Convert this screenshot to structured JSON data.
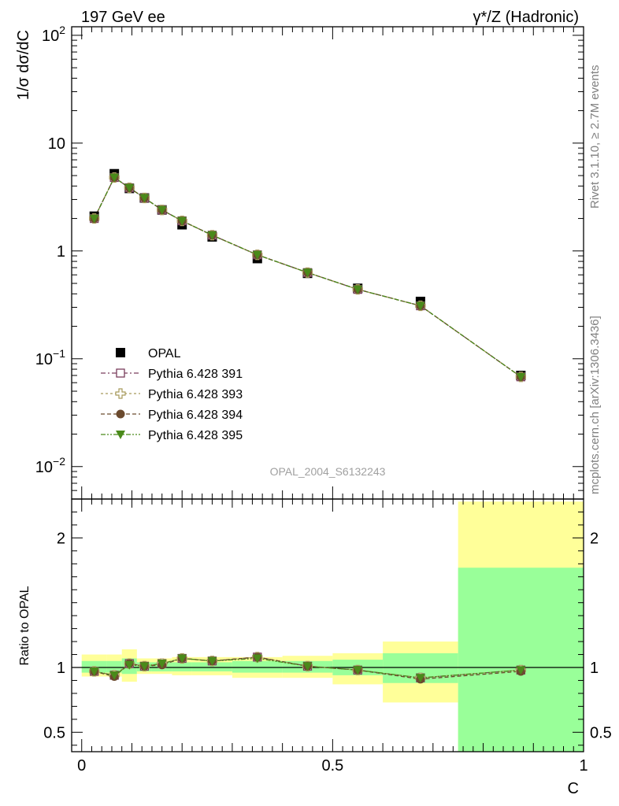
{
  "header": {
    "left": "197 GeV ee",
    "right": "γ*/Z (Hadronic)"
  },
  "side_labels": {
    "rivet": "Rivet 3.1.10, ≥ 2.7M events",
    "mcplots": "mcplots.cern.ch [arXiv:1306.3436]"
  },
  "analysis_id": "OPAL_2004_S6132243",
  "colors": {
    "data": "#000000",
    "p391": "#7a3d5c",
    "p393": "#a89a5c",
    "p394": "#6b4a2e",
    "p395": "#4a8a1a",
    "band_inner": "#99ff99",
    "band_outer": "#ffff99"
  },
  "chart_data": [
    {
      "type": "scatter",
      "ylabel": "1/σ dσ/dC",
      "yscale": "log",
      "ylim": [
        0.005,
        120
      ],
      "xlim": [
        -0.02,
        1.0
      ],
      "yticks": [
        {
          "value": 0.01,
          "base": "10",
          "exp": "−2"
        },
        {
          "value": 0.1,
          "base": "10",
          "exp": "−1"
        },
        {
          "value": 1,
          "base": "1",
          "exp": ""
        },
        {
          "value": 10,
          "base": "10",
          "exp": ""
        },
        {
          "value": 100,
          "base": "10",
          "exp": "2"
        }
      ],
      "legend_position": "lower-left",
      "legend": [
        {
          "label": "OPAL",
          "key": "data"
        },
        {
          "label": "Pythia 6.428 391",
          "key": "p391"
        },
        {
          "label": "Pythia 6.428 393",
          "key": "p393"
        },
        {
          "label": "Pythia 6.428 394",
          "key": "p394"
        },
        {
          "label": "Pythia 6.428 395",
          "key": "p395"
        }
      ],
      "x": [
        0.025,
        0.065,
        0.095,
        0.125,
        0.16,
        0.2,
        0.26,
        0.35,
        0.45,
        0.55,
        0.675,
        0.875
      ],
      "series": [
        {
          "name": "OPAL",
          "key": "data",
          "values": [
            2.1,
            5.2,
            3.8,
            3.1,
            2.4,
            1.75,
            1.35,
            0.85,
            0.62,
            0.45,
            0.34,
            0.07
          ]
        },
        {
          "name": "Pythia 6.428 391",
          "key": "p391",
          "values": [
            2.0,
            4.8,
            3.85,
            3.1,
            2.4,
            1.9,
            1.4,
            0.92,
            0.63,
            0.44,
            0.31,
            0.068
          ]
        },
        {
          "name": "Pythia 6.428 393",
          "key": "p393",
          "values": [
            2.0,
            4.8,
            3.85,
            3.1,
            2.4,
            1.9,
            1.4,
            0.92,
            0.63,
            0.44,
            0.31,
            0.068
          ]
        },
        {
          "name": "Pythia 6.428 394",
          "key": "p394",
          "values": [
            2.0,
            4.8,
            3.85,
            3.1,
            2.4,
            1.9,
            1.4,
            0.92,
            0.63,
            0.44,
            0.31,
            0.068
          ]
        },
        {
          "name": "Pythia 6.428 395",
          "key": "p395",
          "values": [
            2.0,
            4.8,
            3.85,
            3.1,
            2.4,
            1.9,
            1.4,
            0.92,
            0.63,
            0.44,
            0.31,
            0.068
          ]
        }
      ]
    },
    {
      "type": "scatter",
      "ylabel": "Ratio to OPAL",
      "xlabel": "C",
      "ylim": [
        0.35,
        2.3
      ],
      "xlim": [
        -0.02,
        1.0
      ],
      "xticks": [
        {
          "value": 0,
          "label": "0"
        },
        {
          "value": 0.5,
          "label": "0.5"
        },
        {
          "value": 1,
          "label": "1"
        }
      ],
      "yticks": [
        {
          "value": 0.5,
          "label": "0.5"
        },
        {
          "value": 1,
          "label": "1"
        },
        {
          "value": 2,
          "label": "2"
        }
      ],
      "reference_line": 1,
      "bands": [
        {
          "xmin": 0.0,
          "xmax": 0.05,
          "inner": [
            0.96,
            1.05
          ],
          "outer": [
            0.93,
            1.1
          ]
        },
        {
          "xmin": 0.05,
          "xmax": 0.08,
          "inner": [
            0.96,
            1.05
          ],
          "outer": [
            0.93,
            1.1
          ]
        },
        {
          "xmin": 0.08,
          "xmax": 0.11,
          "inner": [
            0.95,
            1.07
          ],
          "outer": [
            0.89,
            1.14
          ]
        },
        {
          "xmin": 0.11,
          "xmax": 0.14,
          "inner": [
            0.97,
            1.04
          ],
          "outer": [
            0.95,
            1.07
          ]
        },
        {
          "xmin": 0.14,
          "xmax": 0.18,
          "inner": [
            0.97,
            1.04
          ],
          "outer": [
            0.95,
            1.07
          ]
        },
        {
          "xmin": 0.18,
          "xmax": 0.22,
          "inner": [
            0.97,
            1.04
          ],
          "outer": [
            0.94,
            1.08
          ]
        },
        {
          "xmin": 0.22,
          "xmax": 0.3,
          "inner": [
            0.97,
            1.04
          ],
          "outer": [
            0.94,
            1.08
          ]
        },
        {
          "xmin": 0.3,
          "xmax": 0.4,
          "inner": [
            0.96,
            1.05
          ],
          "outer": [
            0.92,
            1.08
          ]
        },
        {
          "xmin": 0.4,
          "xmax": 0.5,
          "inner": [
            0.96,
            1.05
          ],
          "outer": [
            0.92,
            1.09
          ]
        },
        {
          "xmin": 0.5,
          "xmax": 0.6,
          "inner": [
            0.94,
            1.06
          ],
          "outer": [
            0.87,
            1.11
          ]
        },
        {
          "xmin": 0.6,
          "xmax": 0.75,
          "inner": [
            0.88,
            1.11
          ],
          "outer": [
            0.73,
            1.2
          ]
        },
        {
          "xmin": 0.75,
          "xmax": 1.0,
          "inner": [
            0.35,
            1.77
          ],
          "outer": [
            0.35,
            2.28
          ]
        }
      ],
      "x": [
        0.025,
        0.065,
        0.095,
        0.125,
        0.16,
        0.2,
        0.26,
        0.35,
        0.45,
        0.55,
        0.675,
        0.875
      ],
      "series": [
        {
          "name": "Pythia 6.428 391",
          "key": "p391",
          "values": [
            0.97,
            0.94,
            1.03,
            1.01,
            1.03,
            1.07,
            1.05,
            1.08,
            1.01,
            0.98,
            0.92,
            0.98
          ]
        },
        {
          "name": "Pythia 6.428 393",
          "key": "p393",
          "values": [
            0.97,
            0.94,
            1.03,
            1.01,
            1.03,
            1.07,
            1.05,
            1.08,
            1.01,
            0.98,
            0.92,
            0.98
          ]
        },
        {
          "name": "Pythia 6.428 394",
          "key": "p394",
          "values": [
            0.97,
            0.93,
            1.03,
            1.01,
            1.02,
            1.07,
            1.05,
            1.08,
            1.01,
            0.98,
            0.91,
            0.97
          ]
        },
        {
          "name": "Pythia 6.428 395",
          "key": "p395",
          "values": [
            0.97,
            0.94,
            1.02,
            1.01,
            1.03,
            1.07,
            1.05,
            1.07,
            1.01,
            0.98,
            0.92,
            0.98
          ]
        }
      ]
    }
  ]
}
